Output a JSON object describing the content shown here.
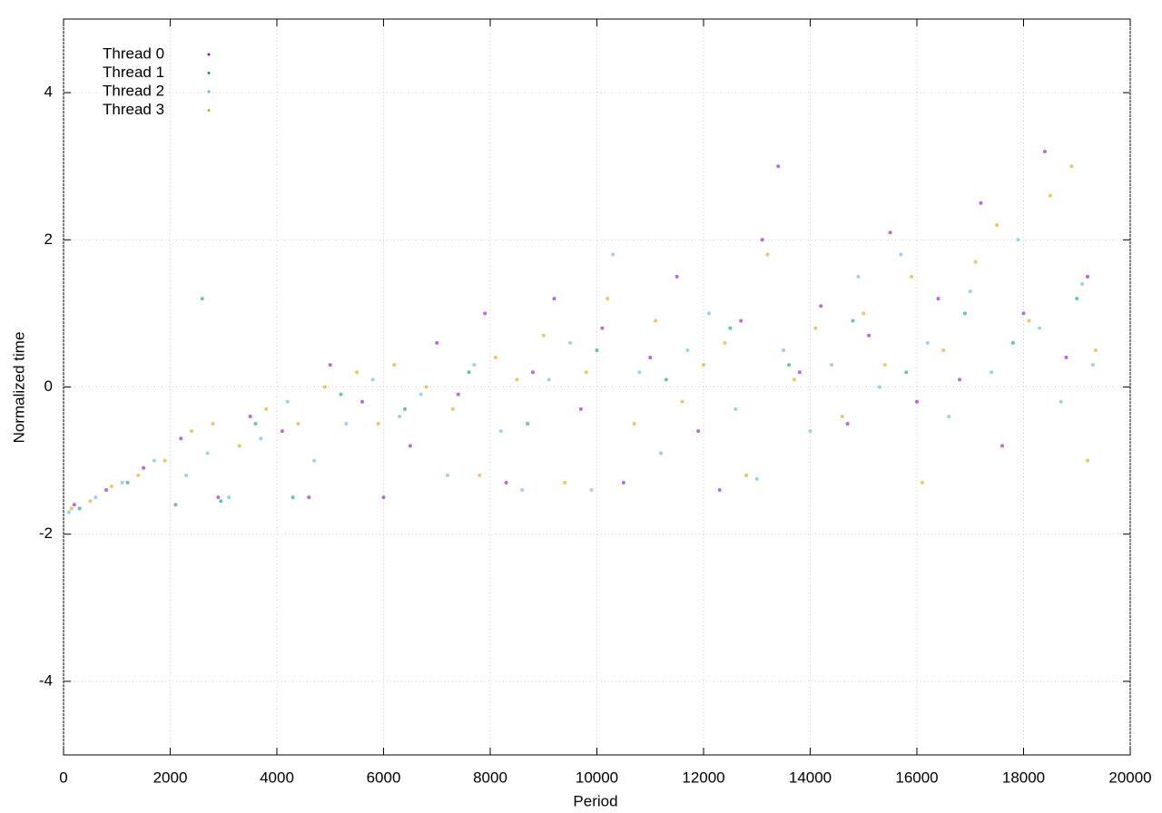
{
  "chart_data": {
    "type": "scatter",
    "xlabel": "Period",
    "ylabel": "Normalized time",
    "xlim": [
      0,
      20000
    ],
    "xticks": [
      0,
      2000,
      4000,
      6000,
      8000,
      10000,
      12000,
      14000,
      16000,
      18000,
      20000
    ],
    "ylim": [
      -5,
      5
    ],
    "yticks": [
      -4,
      -2,
      0,
      2,
      4
    ],
    "grid": true,
    "legend": "upper left",
    "series": [
      {
        "name": "Thread 0",
        "color": "#9400d3",
        "x": [
          200,
          800,
          1500,
          2200,
          2900,
          3500,
          4100,
          4600,
          5000,
          5600,
          6000,
          6500,
          7000,
          7400,
          7900,
          8300,
          8800,
          9200,
          9700,
          10100,
          10500,
          11000,
          11500,
          11900,
          12300,
          12700,
          13100,
          13400,
          13800,
          14200,
          14700,
          15100,
          15500,
          16000,
          16400,
          16800,
          17200,
          17600,
          18000,
          18400,
          18800,
          19200
        ],
        "values": [
          -1.6,
          -1.4,
          -1.1,
          -0.7,
          -1.5,
          -0.4,
          -0.6,
          -1.5,
          0.3,
          -0.2,
          -1.5,
          -0.8,
          0.6,
          -0.1,
          1.0,
          -1.3,
          0.2,
          1.2,
          -0.3,
          0.8,
          -1.3,
          0.4,
          1.5,
          -0.6,
          -1.4,
          0.9,
          2.0,
          3.0,
          0.2,
          1.1,
          -0.5,
          0.7,
          2.1,
          -0.2,
          1.2,
          0.1,
          2.5,
          -0.8,
          1.0,
          3.2,
          0.4,
          1.5
        ]
      },
      {
        "name": "Thread 1",
        "color": "#009e73",
        "x": [
          300,
          1200,
          2100,
          2600,
          2950,
          3600,
          4300,
          5200,
          6400,
          7600,
          8700,
          10000,
          11300,
          12500,
          13600,
          14800,
          15800,
          16900,
          17800,
          19000
        ],
        "values": [
          -1.65,
          -1.3,
          -1.6,
          1.2,
          -1.55,
          -0.5,
          -1.5,
          -0.1,
          -0.3,
          0.2,
          -0.5,
          0.5,
          0.1,
          0.8,
          0.3,
          0.9,
          0.2,
          1.0,
          0.6,
          1.2
        ]
      },
      {
        "name": "Thread 2",
        "color": "#56b4e9",
        "x": [
          100,
          600,
          1100,
          1700,
          2300,
          2700,
          3100,
          3700,
          4200,
          4700,
          5300,
          5800,
          6300,
          6700,
          7200,
          7700,
          8200,
          8600,
          9100,
          9500,
          9900,
          10300,
          10800,
          11200,
          11700,
          12100,
          12600,
          13000,
          13500,
          14000,
          14400,
          14900,
          15300,
          15700,
          16200,
          16600,
          17000,
          17400,
          17900,
          18300,
          18700,
          19100,
          19300
        ],
        "values": [
          -1.7,
          -1.5,
          -1.3,
          -1.0,
          -1.2,
          -0.9,
          -1.5,
          -0.7,
          -0.2,
          -1.0,
          -0.5,
          0.1,
          -0.4,
          -0.1,
          -1.2,
          0.3,
          -0.6,
          -1.4,
          0.1,
          0.6,
          -1.4,
          1.8,
          0.2,
          -0.9,
          0.5,
          1.0,
          -0.3,
          -1.25,
          0.5,
          -0.6,
          0.3,
          1.5,
          0.0,
          1.8,
          0.6,
          -0.4,
          1.3,
          0.2,
          2.0,
          0.8,
          -0.2,
          1.4,
          0.3
        ]
      },
      {
        "name": "Thread 3",
        "color": "#e69f00",
        "x": [
          150,
          500,
          900,
          1400,
          1900,
          2400,
          2800,
          3300,
          3800,
          4400,
          4900,
          5500,
          5900,
          6200,
          6800,
          7300,
          7800,
          8100,
          8500,
          9000,
          9400,
          9800,
          10200,
          10700,
          11100,
          11600,
          12000,
          12400,
          12800,
          13200,
          13700,
          14100,
          14600,
          15000,
          15400,
          15900,
          16100,
          16500,
          17100,
          17500,
          18100,
          18500,
          18900,
          19200,
          19350
        ],
        "values": [
          -1.65,
          -1.55,
          -1.35,
          -1.2,
          -1.0,
          -0.6,
          -0.5,
          -0.8,
          -0.3,
          -0.5,
          0.0,
          0.2,
          -0.5,
          0.3,
          0.0,
          -0.3,
          -1.2,
          0.4,
          0.1,
          0.7,
          -1.3,
          0.2,
          1.2,
          -0.5,
          0.9,
          -0.2,
          0.3,
          0.6,
          -1.2,
          1.8,
          0.1,
          0.8,
          -0.4,
          1.0,
          0.3,
          1.5,
          -1.3,
          0.5,
          1.7,
          2.2,
          0.9,
          2.6,
          3.0,
          -1.0,
          0.5
        ]
      }
    ]
  }
}
